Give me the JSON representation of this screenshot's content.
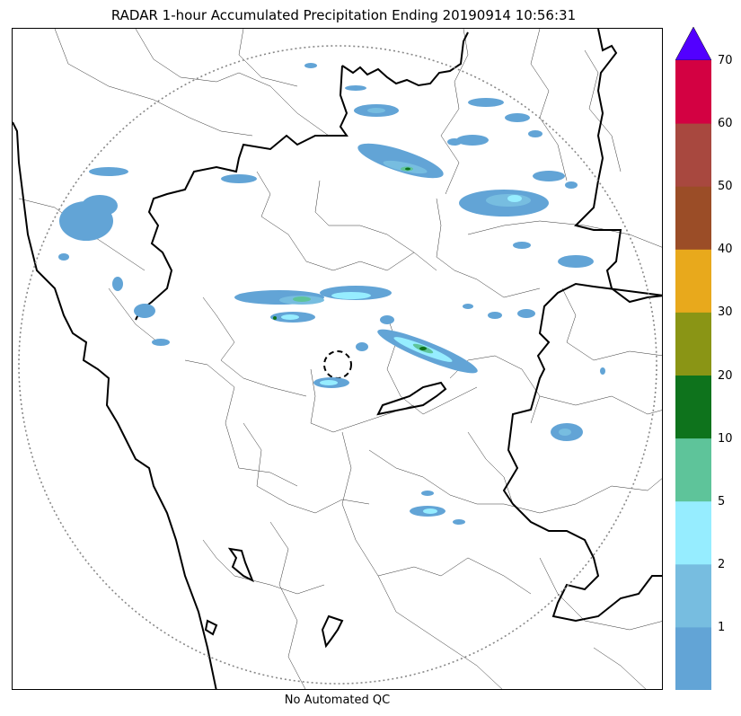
{
  "title": "RADAR 1-hour Accumulated Precipitation Ending 20190914 10:56:31",
  "caption": "No Automated QC",
  "colorbar": {
    "levels": [
      {
        "label": "",
        "color": "#62a4d6"
      },
      {
        "label": "1",
        "color": "#77bde0"
      },
      {
        "label": "2",
        "color": "#96edff"
      },
      {
        "label": "5",
        "color": "#5ec49a"
      },
      {
        "label": "10",
        "color": "#0e731c"
      },
      {
        "label": "20",
        "color": "#8a9515"
      },
      {
        "label": "30",
        "color": "#e8a91c"
      },
      {
        "label": "40",
        "color": "#9b4d27"
      },
      {
        "label": "50",
        "color": "#a8483f"
      },
      {
        "label": "60",
        "color": "#d30142"
      }
    ],
    "top_label": "70",
    "extend_color": "#5200ff"
  }
}
